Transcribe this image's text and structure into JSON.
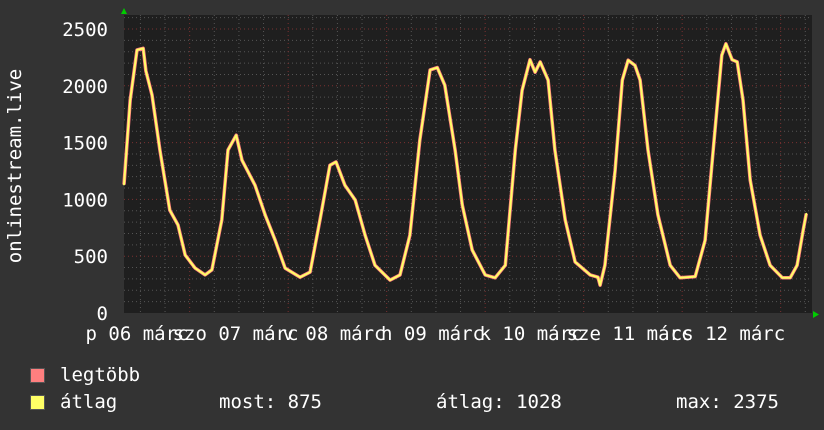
{
  "chart_data": {
    "type": "line",
    "ylabel": "onlinestream.live",
    "ylim": [
      0,
      2500
    ],
    "yticks": [
      "0",
      "500",
      "1000",
      "1500",
      "2000",
      "2500"
    ],
    "xtick_labels": [
      "p 06 márc",
      "szo 07 márc",
      "v 08 márc",
      "h 09 márc",
      "k 10 márc",
      "sze 11 márc",
      "cs 12 márc"
    ],
    "grid": true,
    "legend_position": "bottom-left",
    "series": [
      {
        "name": "legtöbb",
        "color": "#FF7F7F"
      },
      {
        "name": "átlag",
        "color": "#FFFF66"
      }
    ],
    "points": [
      [
        "06 08:00",
        1130
      ],
      [
        "06 09:30",
        1875
      ],
      [
        "06 11:10",
        2315
      ],
      [
        "06 12:40",
        2330
      ],
      [
        "06 13:20",
        2130
      ],
      [
        "06 14:50",
        1920
      ],
      [
        "06 16:45",
        1435
      ],
      [
        "06 19:10",
        905
      ],
      [
        "06 21:10",
        775
      ],
      [
        "06 22:55",
        510
      ],
      [
        "07 01:20",
        395
      ],
      [
        "07 03:45",
        335
      ],
      [
        "07 05:25",
        380
      ],
      [
        "07 07:50",
        820
      ],
      [
        "07 09:20",
        1435
      ],
      [
        "07 11:20",
        1565
      ],
      [
        "07 12:45",
        1345
      ],
      [
        "07 15:55",
        1125
      ],
      [
        "07 18:25",
        860
      ],
      [
        "07 20:50",
        640
      ],
      [
        "07 23:15",
        395
      ],
      [
        "08 02:55",
        315
      ],
      [
        "08 05:20",
        360
      ],
      [
        "08 07:45",
        820
      ],
      [
        "08 10:10",
        1300
      ],
      [
        "08 11:40",
        1330
      ],
      [
        "08 13:50",
        1125
      ],
      [
        "08 16:20",
        995
      ],
      [
        "08 18:45",
        685
      ],
      [
        "08 21:10",
        420
      ],
      [
        "09 00:50",
        290
      ],
      [
        "09 03:15",
        335
      ],
      [
        "09 05:40",
        685
      ],
      [
        "09 08:05",
        1520
      ],
      [
        "09 10:35",
        2140
      ],
      [
        "09 12:20",
        2160
      ],
      [
        "09 14:10",
        2005
      ],
      [
        "09 16:40",
        1435
      ],
      [
        "09 18:25",
        950
      ],
      [
        "09 20:50",
        555
      ],
      [
        "10 00:00",
        335
      ],
      [
        "10 02:25",
        310
      ],
      [
        "10 04:55",
        420
      ],
      [
        "10 07:20",
        1435
      ],
      [
        "10 09:00",
        1960
      ],
      [
        "10 10:55",
        2230
      ],
      [
        "10 12:10",
        2120
      ],
      [
        "10 13:25",
        2210
      ],
      [
        "10 15:20",
        2050
      ],
      [
        "10 17:00",
        1435
      ],
      [
        "10 19:30",
        820
      ],
      [
        "10 21:55",
        450
      ],
      [
        "11 01:35",
        335
      ],
      [
        "11 03:30",
        315
      ],
      [
        "11 04:00",
        245
      ],
      [
        "11 05:10",
        420
      ],
      [
        "11 07:40",
        1255
      ],
      [
        "11 09:25",
        2050
      ],
      [
        "11 10:50",
        2225
      ],
      [
        "11 12:30",
        2180
      ],
      [
        "11 13:45",
        2050
      ],
      [
        "11 15:40",
        1435
      ],
      [
        "11 18:05",
        865
      ],
      [
        "11 21:05",
        420
      ],
      [
        "11 23:30",
        310
      ],
      [
        "12 03:10",
        320
      ],
      [
        "12 05:35",
        640
      ],
      [
        "12 08:00",
        1610
      ],
      [
        "12 09:40",
        2270
      ],
      [
        "12 10:40",
        2370
      ],
      [
        "12 12:10",
        2230
      ],
      [
        "12 13:25",
        2210
      ],
      [
        "12 14:50",
        1875
      ],
      [
        "12 16:35",
        1170
      ],
      [
        "12 19:00",
        685
      ],
      [
        "12 21:25",
        420
      ],
      [
        "13 00:25",
        310
      ],
      [
        "13 02:20",
        310
      ],
      [
        "13 04:00",
        420
      ],
      [
        "13 05:30",
        730
      ],
      [
        "13 06:15",
        875
      ]
    ]
  },
  "legend": {
    "max_label": "legtöbb",
    "avg_label": "átlag",
    "now": "most: 875",
    "avg": "átlag: 1028",
    "max": "max: 2375"
  },
  "colors": {
    "background": "#333333",
    "plot": "#1f1f1f",
    "arrow": "#00cc00"
  }
}
